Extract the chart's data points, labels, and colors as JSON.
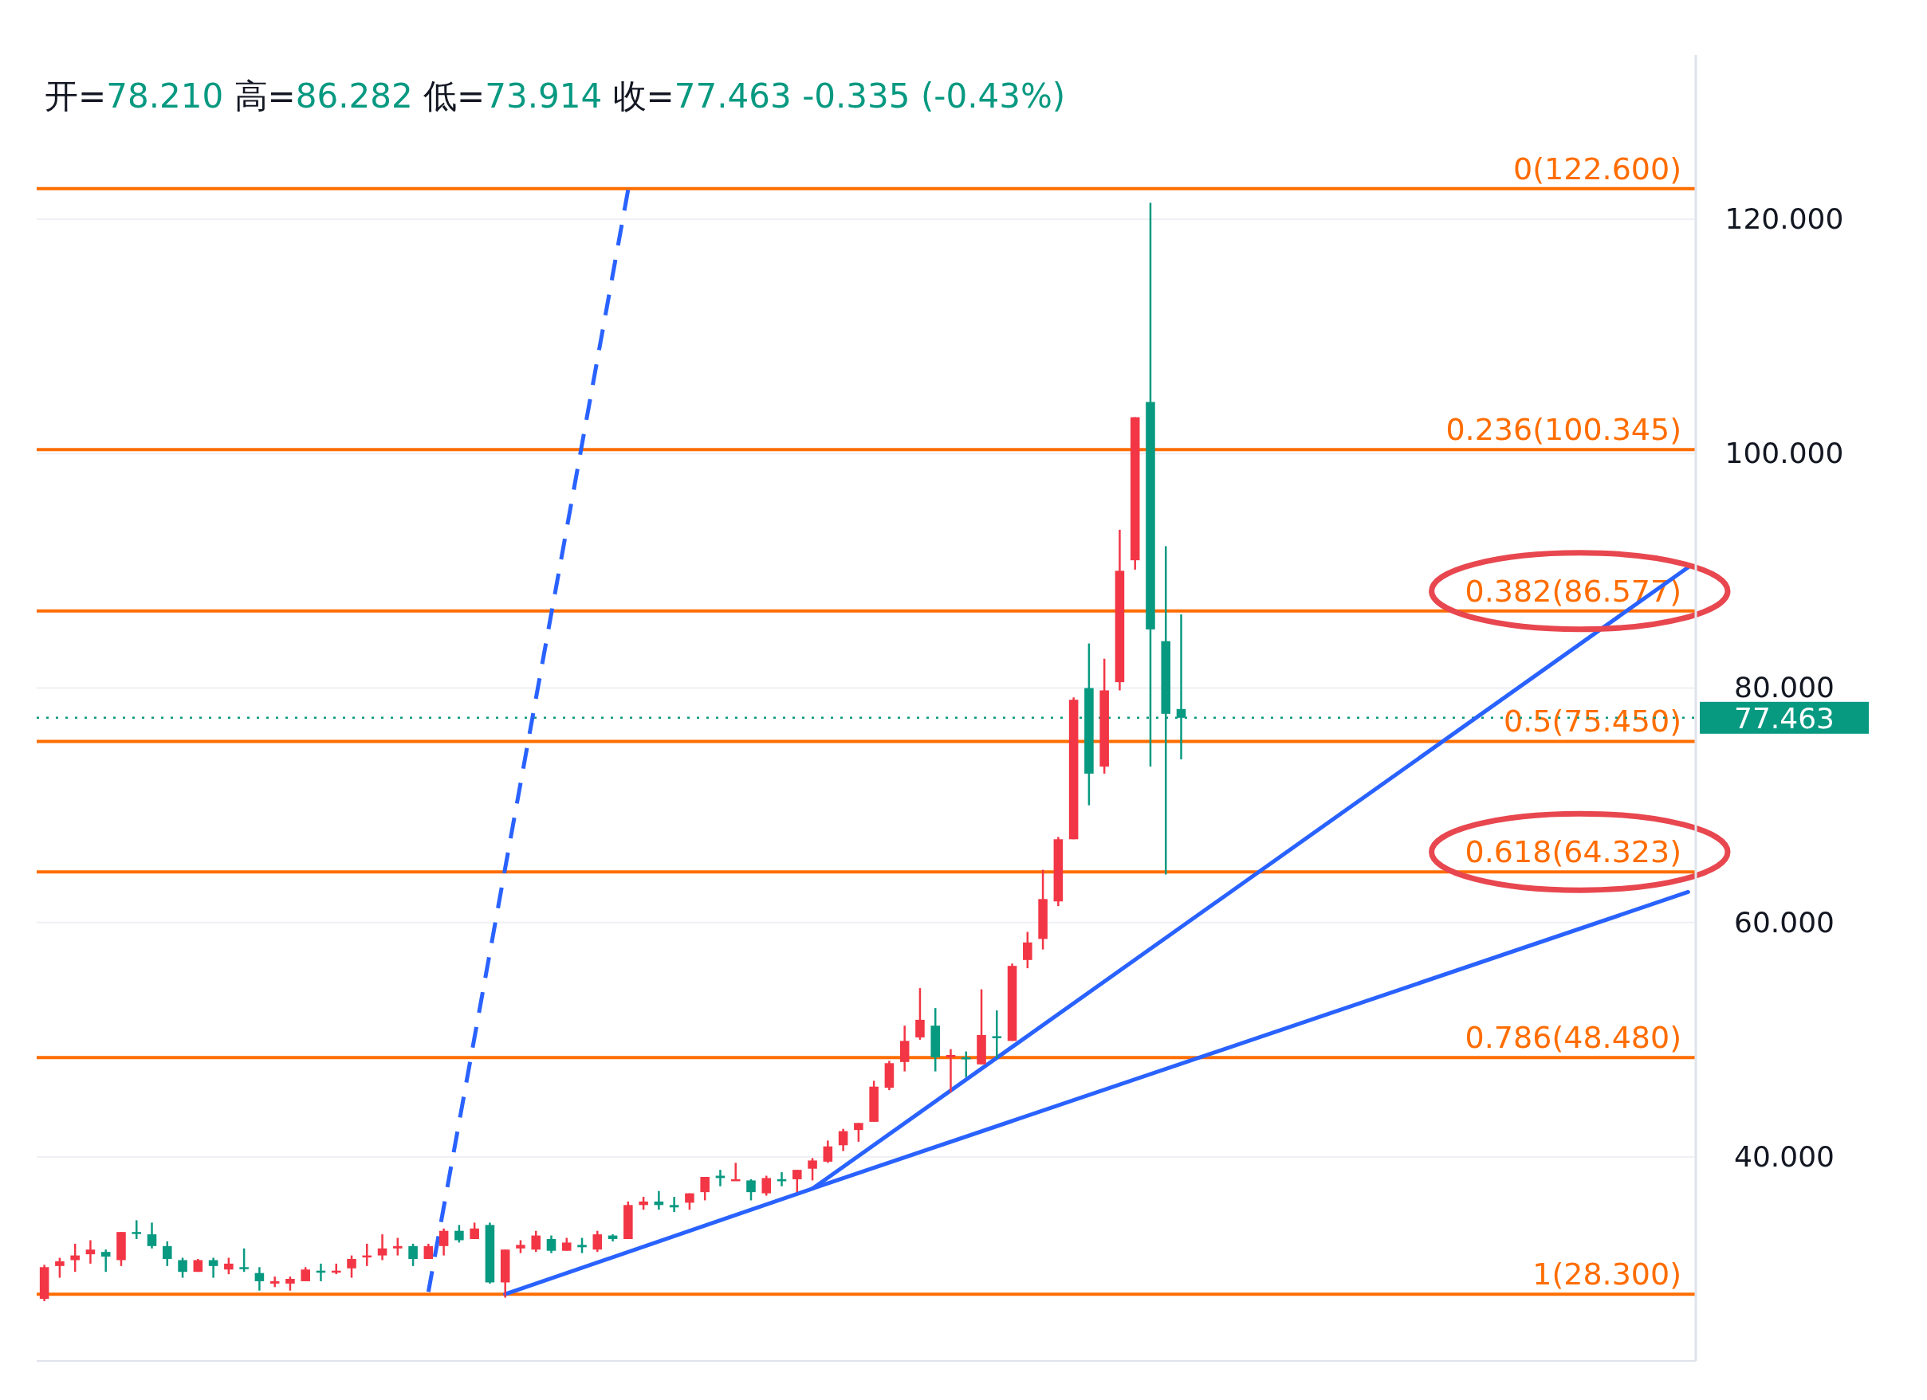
{
  "chart_data": {
    "type": "candlestick",
    "title": "开=78.210 高=86.282 低=73.914 收=77.463 -0.335 (-0.43%)",
    "categories": [
      null,
      null,
      null,
      null,
      null,
      null,
      null,
      null,
      null,
      null,
      null,
      null,
      null,
      null,
      null,
      null,
      null,
      null,
      null,
      null,
      null,
      null,
      null,
      null,
      null,
      null,
      null,
      null,
      null,
      null,
      null,
      null,
      null,
      null,
      null,
      null,
      null,
      null,
      null,
      null,
      null,
      null,
      null,
      null,
      null,
      null,
      null,
      null,
      null,
      null,
      null,
      null,
      null,
      null,
      null,
      null,
      null,
      null,
      null,
      null,
      null,
      null,
      null,
      null,
      null,
      null,
      null,
      null,
      null,
      null,
      null,
      null,
      null,
      null,
      null,
      null,
      null,
      null,
      null,
      null,
      null,
      null,
      null,
      null,
      null,
      null,
      null,
      null,
      null,
      null,
      null,
      null,
      null,
      null,
      null,
      null,
      null,
      null,
      null,
      null,
      null,
      null,
      null,
      null,
      null,
      null,
      null,
      null
    ],
    "ohlc": [
      [
        27.9,
        30.8,
        27.7,
        30.6
      ],
      [
        30.7,
        31.4,
        29.7,
        31.1
      ],
      [
        31.2,
        32.6,
        30.2,
        31.6
      ],
      [
        31.7,
        32.9,
        30.9,
        32.1
      ],
      [
        31.9,
        32.1,
        30.2,
        31.5
      ],
      [
        31.2,
        33.6,
        30.7,
        33.6
      ],
      [
        33.6,
        34.6,
        33.0,
        33.5
      ],
      [
        33.4,
        34.4,
        32.2,
        32.4
      ],
      [
        32.4,
        32.8,
        30.7,
        31.3
      ],
      [
        31.2,
        31.4,
        29.7,
        30.2
      ],
      [
        30.2,
        31.3,
        30.2,
        31.2
      ],
      [
        31.2,
        31.4,
        29.7,
        30.7
      ],
      [
        30.4,
        31.4,
        30.0,
        30.9
      ],
      [
        30.6,
        32.2,
        30.2,
        30.5
      ],
      [
        30.1,
        30.6,
        28.6,
        29.4
      ],
      [
        29.2,
        29.8,
        28.9,
        29.4
      ],
      [
        29.2,
        29.8,
        28.6,
        29.6
      ],
      [
        29.4,
        30.6,
        29.4,
        30.4
      ],
      [
        30.3,
        30.9,
        29.4,
        30.2
      ],
      [
        30.2,
        30.9,
        30.0,
        30.3
      ],
      [
        30.5,
        31.6,
        29.7,
        31.3
      ],
      [
        31.5,
        32.6,
        30.7,
        31.6
      ],
      [
        31.6,
        33.4,
        31.2,
        32.2
      ],
      [
        32.2,
        33.1,
        31.6,
        32.4
      ],
      [
        32.4,
        32.6,
        30.7,
        31.3
      ],
      [
        31.3,
        32.6,
        31.3,
        32.4
      ],
      [
        32.4,
        33.9,
        31.6,
        33.7
      ],
      [
        33.7,
        34.2,
        32.7,
        32.9
      ],
      [
        33.0,
        34.4,
        33.0,
        33.9
      ],
      [
        34.2,
        34.4,
        29.2,
        29.3
      ],
      [
        29.3,
        32.1,
        28.0,
        32.1
      ],
      [
        32.2,
        32.9,
        31.8,
        32.5
      ],
      [
        32.1,
        33.7,
        31.9,
        33.3
      ],
      [
        33.0,
        33.3,
        31.8,
        32.0
      ],
      [
        32.0,
        33.1,
        32.0,
        32.7
      ],
      [
        32.5,
        33.1,
        31.8,
        32.3
      ],
      [
        32.1,
        33.7,
        31.9,
        33.4
      ],
      [
        33.3,
        33.4,
        32.8,
        33.0
      ],
      [
        33.0,
        36.2,
        33.0,
        35.9
      ],
      [
        35.9,
        36.6,
        35.5,
        36.2
      ],
      [
        36.2,
        37.1,
        35.5,
        35.9
      ],
      [
        35.9,
        36.6,
        35.3,
        35.7
      ],
      [
        36.1,
        36.9,
        35.5,
        36.9
      ],
      [
        37.0,
        38.3,
        36.3,
        38.3
      ],
      [
        38.4,
        38.9,
        37.5,
        38.2
      ],
      [
        38.0,
        39.5,
        38.0,
        38.1
      ],
      [
        38.0,
        38.1,
        36.3,
        37.0
      ],
      [
        36.9,
        38.4,
        36.7,
        38.2
      ],
      [
        38.1,
        38.7,
        37.5,
        38.0
      ],
      [
        38.1,
        38.9,
        37.0,
        38.9
      ],
      [
        39.0,
        39.9,
        38.0,
        39.7
      ],
      [
        39.6,
        41.4,
        39.5,
        40.9
      ],
      [
        41.0,
        42.4,
        40.5,
        42.2
      ],
      [
        42.3,
        42.9,
        41.3,
        42.9
      ],
      [
        43.0,
        46.5,
        43.0,
        46.0
      ],
      [
        45.9,
        48.2,
        45.7,
        48.0
      ],
      [
        48.1,
        51.2,
        47.3,
        49.9
      ],
      [
        50.2,
        54.4,
        50.0,
        51.7
      ],
      [
        51.2,
        52.7,
        47.3,
        48.5
      ],
      [
        48.5,
        49.2,
        45.5,
        48.7
      ],
      [
        48.5,
        49.0,
        46.8,
        48.4
      ],
      [
        47.9,
        54.3,
        47.9,
        50.4
      ],
      [
        50.3,
        52.5,
        48.4,
        50.2
      ],
      [
        49.9,
        56.5,
        49.9,
        56.3
      ],
      [
        56.8,
        59.2,
        56.1,
        58.3
      ],
      [
        58.6,
        64.5,
        57.7,
        62.0
      ],
      [
        61.8,
        67.3,
        61.4,
        67.1
      ],
      [
        67.1,
        79.2,
        67.1,
        79.0
      ],
      [
        80.0,
        83.8,
        70.0,
        72.7
      ],
      [
        73.3,
        82.5,
        72.7,
        79.8
      ],
      [
        80.5,
        93.5,
        79.8,
        90.0
      ],
      [
        90.9,
        103.1,
        90.1,
        103.1
      ],
      [
        104.4,
        121.4,
        73.3,
        85.0
      ],
      [
        84.0,
        92.1,
        64.1,
        77.8
      ],
      [
        78.21,
        86.282,
        73.914,
        77.463
      ],
      null,
      null,
      null,
      null,
      null,
      null,
      null,
      null,
      null,
      null,
      null,
      null,
      null,
      null,
      null,
      null,
      null,
      null,
      null,
      null,
      null,
      null,
      null,
      null,
      null,
      null,
      null,
      null,
      null,
      null,
      null,
      null,
      null
    ],
    "series": [
      {
        "type": "line",
        "color": "#2962ff",
        "line_style": "dashed",
        "values": [
          null,
          null,
          null,
          null,
          null,
          null,
          null,
          null,
          null,
          null,
          null,
          null,
          null,
          null,
          null,
          null,
          null,
          null,
          null,
          null,
          null,
          null,
          null,
          null,
          null,
          28.5,
          null,
          null,
          null,
          null,
          null,
          null,
          null,
          null,
          null,
          null,
          null,
          null,
          122.5,
          null,
          null,
          null,
          null,
          null,
          null,
          null,
          null,
          null,
          null,
          null,
          null,
          null,
          null,
          null,
          null,
          null,
          null,
          null,
          null,
          null,
          null,
          null,
          null,
          null,
          null,
          null,
          null,
          null,
          null,
          null,
          null,
          null,
          null,
          null,
          null,
          null,
          null,
          null,
          null,
          null,
          null,
          null,
          null,
          null,
          null,
          null,
          null,
          null,
          null,
          null,
          null,
          null,
          null,
          null,
          null,
          null,
          null,
          null,
          null,
          null,
          null,
          null,
          null,
          null,
          null,
          null,
          null,
          null
        ]
      },
      {
        "type": "line",
        "color": "#2962ff",
        "values": [
          null,
          null,
          null,
          null,
          null,
          null,
          null,
          null,
          null,
          null,
          null,
          null,
          null,
          null,
          null,
          null,
          null,
          null,
          null,
          null,
          null,
          null,
          null,
          null,
          null,
          null,
          null,
          null,
          null,
          null,
          28.3,
          null,
          null,
          null,
          null,
          null,
          null,
          null,
          null,
          null,
          null,
          null,
          null,
          null,
          null,
          null,
          null,
          null,
          null,
          null,
          37.3,
          null,
          null,
          null,
          null,
          null,
          null,
          null,
          null,
          null,
          null,
          null,
          null,
          null,
          null,
          null,
          null,
          null,
          null,
          null,
          null,
          null,
          null,
          null,
          null,
          null,
          null,
          null,
          null,
          null,
          null,
          null,
          null,
          null,
          null,
          null,
          null,
          null,
          null,
          null,
          null,
          null,
          null,
          null,
          null,
          null,
          null,
          null,
          null,
          null,
          null,
          null,
          null,
          null,
          null,
          null,
          null,
          90.3
        ]
      },
      {
        "type": "line",
        "color": "#2962ff",
        "values": [
          null,
          null,
          null,
          null,
          null,
          null,
          null,
          null,
          null,
          null,
          null,
          null,
          null,
          null,
          null,
          null,
          null,
          null,
          null,
          null,
          null,
          null,
          null,
          null,
          null,
          null,
          null,
          null,
          null,
          null,
          null,
          null,
          null,
          null,
          null,
          null,
          null,
          null,
          null,
          null,
          null,
          null,
          null,
          null,
          null,
          null,
          null,
          null,
          null,
          null,
          37.3,
          null,
          null,
          null,
          null,
          null,
          null,
          null,
          null,
          null,
          null,
          null,
          null,
          null,
          null,
          null,
          null,
          null,
          null,
          null,
          null,
          null,
          null,
          null,
          null,
          null,
          null,
          null,
          null,
          null,
          null,
          null,
          null,
          null,
          null,
          null,
          null,
          null,
          null,
          null,
          null,
          null,
          null,
          null,
          null,
          null,
          null,
          null,
          null,
          null,
          null,
          null,
          null,
          null,
          null,
          null,
          null,
          62.6
        ]
      }
    ],
    "ref_lines": [
      {
        "axis": "y",
        "value": 122.6,
        "label": "0(122.600)",
        "color": "#ff6d00"
      },
      {
        "axis": "y",
        "value": 100.345,
        "label": "0.236(100.345)",
        "color": "#ff6d00"
      },
      {
        "axis": "y",
        "value": 86.577,
        "label": "0.382(86.577)",
        "color": "#ff6d00"
      },
      {
        "axis": "y",
        "value": 75.45,
        "label": "0.5(75.450)",
        "color": "#ff6d00"
      },
      {
        "axis": "y",
        "value": 64.323,
        "label": "0.618(64.323)",
        "color": "#ff6d00"
      },
      {
        "axis": "y",
        "value": 48.48,
        "label": "0.786(48.480)",
        "color": "#ff6d00"
      },
      {
        "axis": "y",
        "value": 28.3,
        "label": "1(28.300)",
        "color": "#ff6d00"
      },
      {
        "axis": "y",
        "value": 77.463,
        "label": "77.463",
        "color": "#089981",
        "line_style": "dotted"
      }
    ],
    "ylim": [
      22.6,
      134
    ],
    "yticks": [
      {
        "value": 40,
        "label": "40.000"
      },
      {
        "value": 60,
        "label": "60.000"
      },
      {
        "value": 80,
        "label": "80.000"
      },
      {
        "value": 100,
        "label": "100.000"
      },
      {
        "value": 120,
        "label": "120.000"
      }
    ],
    "grid": "y",
    "tick_labels": "y"
  }
}
